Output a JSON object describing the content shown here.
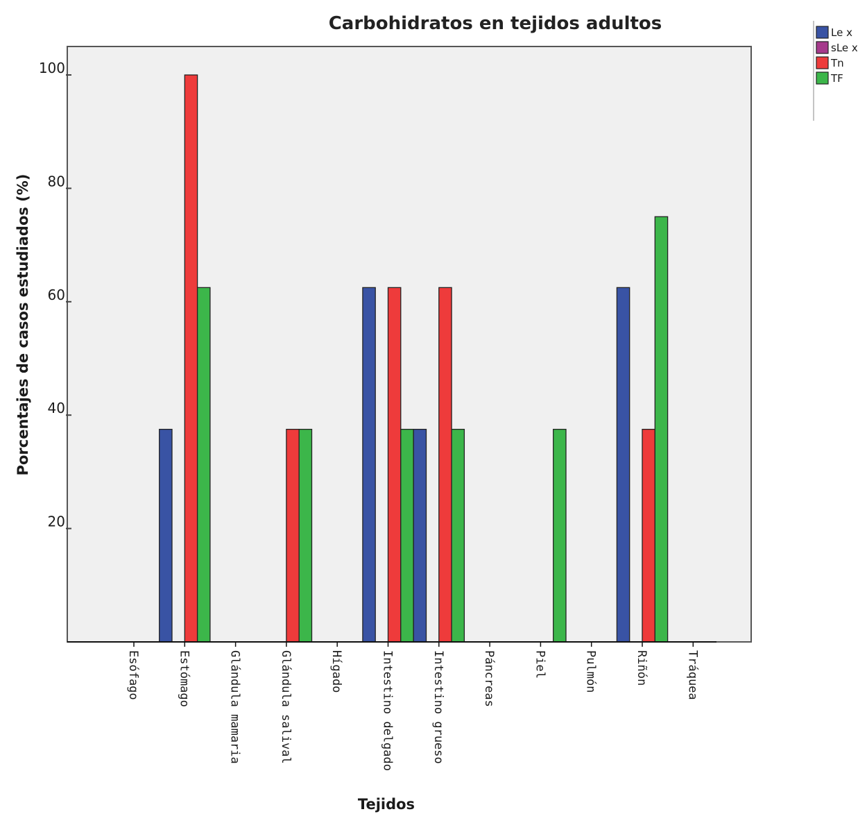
{
  "chart_data": {
    "type": "bar",
    "title": "Carbohidratos en tejidos adultos",
    "xlabel": "Tejidos",
    "ylabel": "Porcentajes de casos estudiados (%)",
    "ylim": [
      0,
      105
    ],
    "yticks": [
      20,
      40,
      60,
      80,
      100
    ],
    "grid": false,
    "legend_position": "top-right",
    "categories": [
      "Esófago",
      "Estómago",
      "Glándula mamaria",
      "Glándula salival",
      "Hígado",
      "Intestino delgado",
      "Intestino grueso",
      "Páncreas",
      "Piel",
      "Pulmón",
      "Riñón",
      "Tráquea"
    ],
    "series": [
      {
        "name": "Le x",
        "color": "#3953a4",
        "values": [
          0,
          37.5,
          0,
          0,
          0,
          62.5,
          37.5,
          0,
          0,
          0,
          62.5,
          0
        ]
      },
      {
        "name": "sLe x",
        "color": "#a63a8c",
        "values": [
          0,
          0,
          0,
          0,
          0,
          0,
          0,
          0,
          0,
          0,
          0,
          0
        ]
      },
      {
        "name": "Tn",
        "color": "#ee3b3b",
        "values": [
          0,
          100,
          0,
          37.5,
          0,
          62.5,
          62.5,
          0,
          0,
          0,
          37.5,
          0
        ]
      },
      {
        "name": "TF",
        "color": "#3cb64a",
        "values": [
          0,
          62.5,
          0,
          37.5,
          0,
          37.5,
          37.5,
          0,
          37.5,
          0,
          75,
          0
        ]
      }
    ],
    "plot_background": "#f0f0f0",
    "axis_color": "#444444"
  }
}
